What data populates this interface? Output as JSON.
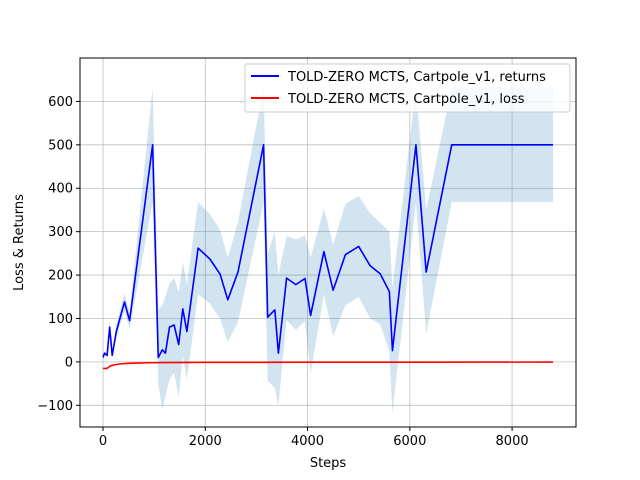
{
  "chart_data": {
    "type": "line",
    "title": "",
    "xlabel": "Steps",
    "ylabel": "Loss & Returns",
    "xlim": [
      -450,
      9250
    ],
    "ylim": [
      -150,
      700
    ],
    "x_ticks": [
      0,
      2000,
      4000,
      6000,
      8000
    ],
    "y_ticks": [
      -100,
      0,
      100,
      200,
      300,
      400,
      500,
      600
    ],
    "x_tick_labels": [
      "0",
      "2000",
      "4000",
      "6000",
      "8000"
    ],
    "y_tick_labels": [
      "−100",
      "0",
      "100",
      "200",
      "300",
      "400",
      "500",
      "600"
    ],
    "grid": true,
    "legend_position": "top-right",
    "series": [
      {
        "name": "TOLD-ZERO MCTS, Cartpole_v1, returns",
        "color": "#0000ff",
        "x": [
          0,
          30,
          80,
          130,
          180,
          260,
          420,
          520,
          970,
          1080,
          1160,
          1220,
          1300,
          1390,
          1480,
          1560,
          1640,
          1860,
          2090,
          2290,
          2440,
          2640,
          3140,
          3220,
          3360,
          3430,
          3590,
          3770,
          3950,
          4060,
          4320,
          4500,
          4740,
          5000,
          5220,
          5420,
          5600,
          5660,
          6120,
          6320,
          6820,
          8800
        ],
        "y": [
          10,
          20,
          15,
          80,
          15,
          70,
          138,
          95,
          500,
          10,
          28,
          20,
          80,
          85,
          40,
          122,
          70,
          262,
          237,
          202,
          143,
          207,
          500,
          103,
          120,
          20,
          193,
          178,
          192,
          107,
          254,
          165,
          247,
          266,
          222,
          203,
          162,
          26,
          500,
          207,
          500,
          500
        ],
        "band_upper": [
          15,
          25,
          20,
          95,
          20,
          85,
          158,
          115,
          632,
          120,
          130,
          150,
          180,
          195,
          160,
          230,
          180,
          368,
          340,
          304,
          240,
          322,
          632,
          250,
          300,
          200,
          290,
          282,
          291,
          240,
          353,
          270,
          364,
          382,
          343,
          320,
          300,
          170,
          632,
          350,
          632,
          632
        ],
        "band_lower": [
          5,
          15,
          10,
          65,
          10,
          55,
          118,
          75,
          368,
          -50,
          -110,
          -80,
          -40,
          -25,
          -80,
          14,
          -40,
          156,
          134,
          100,
          46,
          92,
          368,
          -44,
          -60,
          -100,
          96,
          74,
          93,
          -26,
          155,
          60,
          130,
          150,
          101,
          86,
          24,
          -118,
          368,
          64,
          368,
          368
        ]
      },
      {
        "name": "TOLD-ZERO MCTS, Cartpole_v1, loss",
        "color": "#ff0000",
        "x": [
          0,
          80,
          150,
          250,
          400,
          600,
          900,
          1300,
          2000,
          4000,
          6000,
          8800
        ],
        "y": [
          -15,
          -15,
          -9,
          -6,
          -4,
          -3,
          -2,
          -1.5,
          -1,
          -0.8,
          -0.6,
          -0.5
        ]
      }
    ],
    "band_color": "#1f77b4"
  }
}
